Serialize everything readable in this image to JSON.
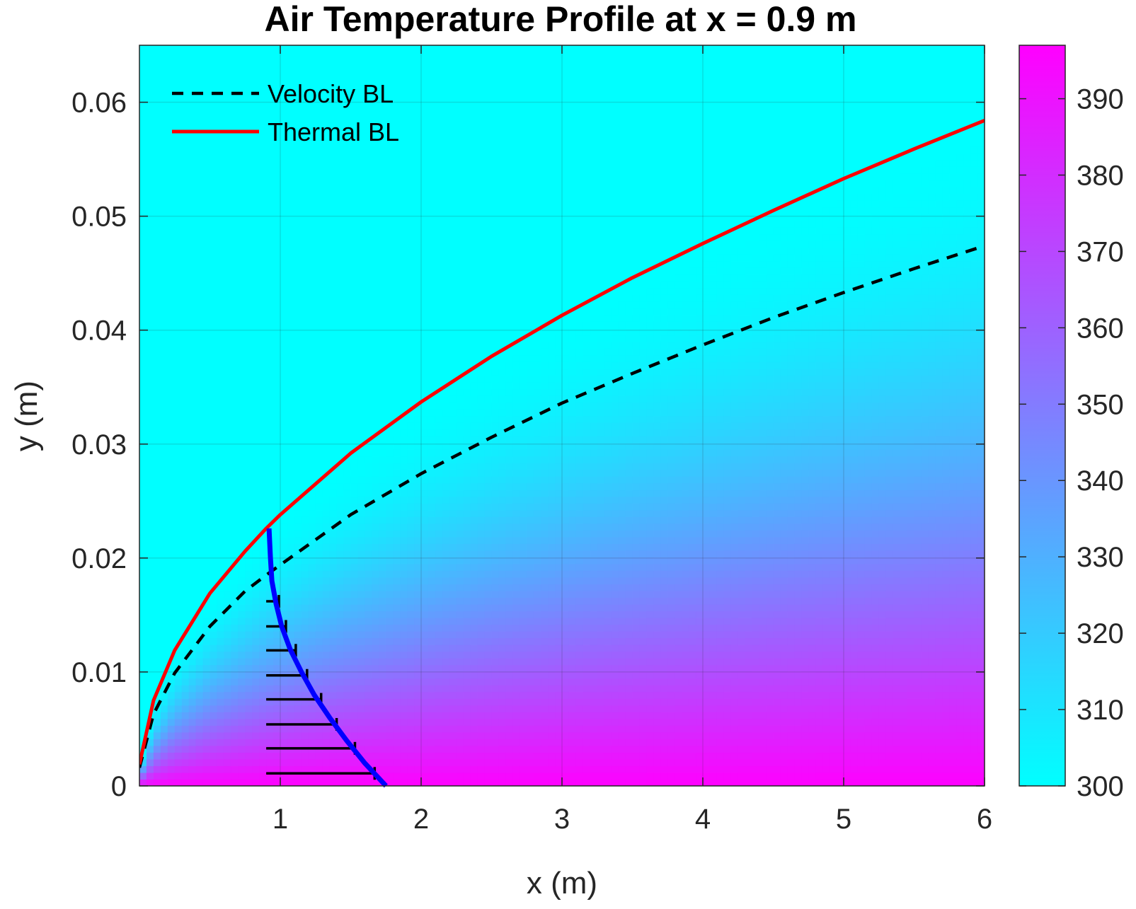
{
  "chart_data": {
    "type": "heatmap",
    "title": "Air Temperature Profile at x = 0.9 m",
    "xlabel": "x (m)",
    "ylabel": "y (m)",
    "xlim": [
      0,
      6
    ],
    "ylim": [
      0,
      0.065
    ],
    "xticks": [
      "1",
      "2",
      "3",
      "4",
      "5",
      "6"
    ],
    "yticks": [
      "0",
      "0.01",
      "0.02",
      "0.03",
      "0.04",
      "0.05",
      "0.06"
    ],
    "xtick_values": [
      1,
      2,
      3,
      4,
      5,
      6
    ],
    "ytick_values": [
      0,
      0.01,
      0.02,
      0.03,
      0.04,
      0.05,
      0.06
    ],
    "grid": true,
    "legend_position": "top-left",
    "colorbar": {
      "range": [
        300,
        397
      ],
      "ticks": [
        "300",
        "310",
        "320",
        "330",
        "340",
        "350",
        "360",
        "370",
        "380",
        "390"
      ],
      "tick_values": [
        300,
        310,
        320,
        330,
        340,
        350,
        360,
        370,
        380,
        390
      ],
      "colors": {
        "low": "#00ffff",
        "high": "#ff00ff"
      }
    },
    "series": [
      {
        "name": "Velocity BL",
        "style": "dashed",
        "color": "#000000",
        "x": [
          0,
          0.1,
          0.25,
          0.5,
          0.75,
          0.9,
          1,
          1.5,
          2,
          2.5,
          3,
          3.5,
          4,
          4.5,
          5,
          5.5,
          6
        ],
        "y": [
          0.0016,
          0.0063,
          0.0099,
          0.014,
          0.0171,
          0.0185,
          0.0194,
          0.0238,
          0.0274,
          0.0306,
          0.0336,
          0.0362,
          0.0387,
          0.0411,
          0.0433,
          0.0454,
          0.0474
        ]
      },
      {
        "name": "Thermal BL",
        "style": "solid",
        "color": "#ff0000",
        "x": [
          0,
          0.1,
          0.25,
          0.5,
          0.75,
          0.9,
          1,
          1.5,
          2,
          2.5,
          3,
          3.5,
          4,
          4.5,
          5,
          5.5,
          6
        ],
        "y": [
          0.0019,
          0.0075,
          0.0119,
          0.0169,
          0.0206,
          0.0226,
          0.0238,
          0.0292,
          0.0337,
          0.0377,
          0.0413,
          0.0446,
          0.0476,
          0.0505,
          0.0533,
          0.0559,
          0.0584
        ]
      }
    ],
    "profile": {
      "color": "#0000ff",
      "x_location": 0.9,
      "points": {
        "y": [
          0,
          0.002,
          0.004,
          0.006,
          0.008,
          0.01,
          0.012,
          0.014,
          0.016,
          0.018,
          0.02,
          0.0226
        ],
        "x": [
          1.75,
          1.6,
          1.47,
          1.35,
          1.24,
          1.15,
          1.07,
          1.01,
          0.97,
          0.94,
          0.93,
          0.92
        ]
      },
      "arrows": {
        "y": [
          0.0011,
          0.0033,
          0.0054,
          0.0076,
          0.0097,
          0.0119,
          0.014,
          0.0162
        ],
        "x_end": [
          1.67,
          1.53,
          1.4,
          1.29,
          1.19,
          1.11,
          1.04,
          0.99
        ]
      }
    }
  }
}
